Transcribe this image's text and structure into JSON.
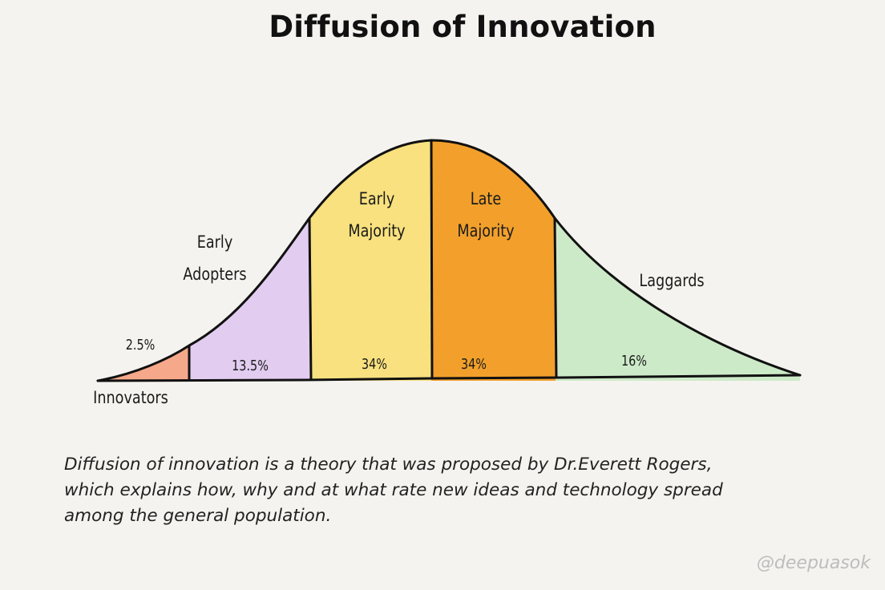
{
  "title": "Diffusion of Innovation",
  "colors": {
    "innovators": "#f5a98a",
    "early_adopters": "#e2ccf0",
    "early_majority": "#f8e17e",
    "late_majority": "#f2a02b",
    "laggards": "#cdeac8",
    "outline": "#111111",
    "background": "#f4f3ef"
  },
  "segments": {
    "innovators": {
      "label": "Innovators",
      "percent": "2.5%"
    },
    "early_adopters": {
      "label_line1": "Early",
      "label_line2": "Adopters",
      "percent": "13.5%"
    },
    "early_majority": {
      "label_line1": "Early",
      "label_line2": "Majority",
      "percent": "34%"
    },
    "late_majority": {
      "label_line1": "Late",
      "label_line2": "Majority",
      "percent": "34%"
    },
    "laggards": {
      "label": "Laggards",
      "percent": "16%"
    }
  },
  "description": {
    "line1": "Diffusion of innovation is a theory that was proposed by Dr.Everett Rogers,",
    "line2": "which explains how, why and at what rate new ideas and technology spread",
    "line3": "among the general population."
  },
  "credit": "@deepuasok"
}
